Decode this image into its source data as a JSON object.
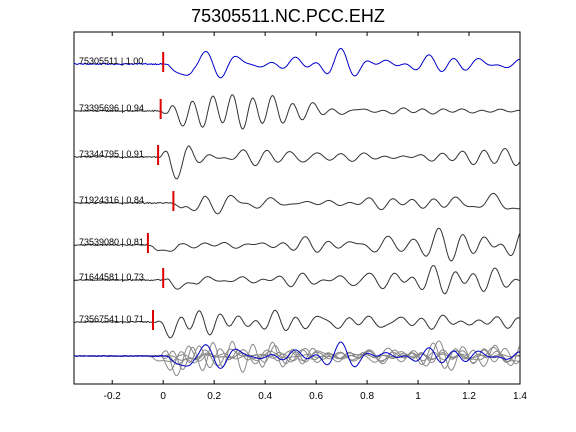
{
  "chart_data": {
    "type": "line",
    "title": "75305511.NC.PCC.EHZ",
    "xlim": [
      -0.35,
      1.4
    ],
    "xticks": [
      -0.2,
      0,
      0.2,
      0.4,
      0.6,
      0.8,
      1,
      1.2,
      1.4
    ],
    "xtick_labels": [
      "-0.2",
      "0",
      "0.2",
      "0.4",
      "0.6",
      "0.8",
      "1",
      "1.2",
      "1.4"
    ],
    "grid": false,
    "legend": "none",
    "reference_color": "#0000cc",
    "other_color": "#333333",
    "stack_color": "#888888",
    "pick_color": "#dd0000",
    "traces": [
      {
        "label": "75305511 | 1.00",
        "pick": 0.0,
        "color": "#0000cc",
        "reference": true
      },
      {
        "label": "73395696 | 0.94",
        "pick": -0.01,
        "color": "#333333"
      },
      {
        "label": "73344795 | 0.91",
        "pick": -0.02,
        "color": "#333333"
      },
      {
        "label": "71924316 | 0.84",
        "pick": 0.04,
        "color": "#333333"
      },
      {
        "label": "73539080 | 0.81",
        "pick": -0.06,
        "color": "#333333"
      },
      {
        "label": "71644581 | 0.73",
        "pick": 0.0,
        "color": "#333333"
      },
      {
        "label": "73567541 | 0.71",
        "pick": -0.04,
        "color": "#333333"
      }
    ]
  }
}
